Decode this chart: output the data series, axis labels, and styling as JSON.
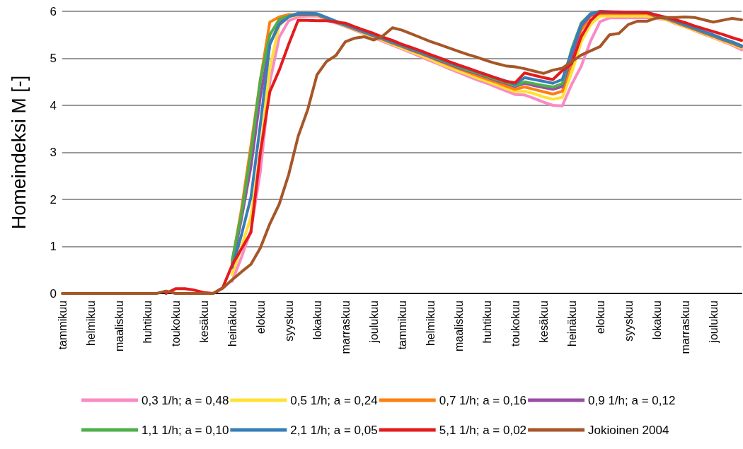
{
  "chart_data": {
    "type": "line",
    "ylabel": "Homeindeksi M [-]",
    "ylim": [
      0,
      6
    ],
    "yticks": [
      0,
      1,
      2,
      3,
      4,
      5,
      6
    ],
    "categories": [
      "tammikuu",
      null,
      null,
      "helmikuu",
      null,
      null,
      "maaliskuu",
      null,
      null,
      "huhtikuu",
      null,
      null,
      "toukokuu",
      null,
      null,
      "kesäkuu",
      null,
      null,
      "heinäkuu",
      null,
      null,
      "elokuu",
      null,
      null,
      "syyskuu",
      null,
      null,
      "lokakuu",
      null,
      null,
      "marraskuu",
      null,
      null,
      "joulukuu",
      null,
      null,
      "tammikuu",
      null,
      null,
      "helmikuu",
      null,
      null,
      "maaliskuu",
      null,
      null,
      "huhtikuu",
      null,
      null,
      "toukokuu",
      null,
      null,
      "kesäkuu",
      null,
      null,
      "heinäkuu",
      null,
      null,
      "elokuu",
      null,
      null,
      "syyskuu",
      null,
      null,
      "lokakuu",
      null,
      null,
      "marraskuu",
      null,
      null,
      "joulukuu",
      null,
      null,
      null
    ],
    "grid": "y",
    "legend": "bottom",
    "marker": "none",
    "line_style": "solid",
    "series": [
      {
        "name": "0,3 1/h; a = 0,48",
        "color": "#f98bc4",
        "values": [
          null,
          null,
          null,
          null,
          null,
          null,
          null,
          null,
          null,
          null,
          null,
          null,
          null,
          null,
          null,
          null,
          null,
          null,
          0.26,
          0.77,
          1.35,
          2.6,
          4.5,
          5.45,
          5.8,
          5.88,
          5.9,
          5.9,
          5.82,
          5.75,
          5.68,
          5.6,
          5.52,
          5.44,
          5.36,
          5.28,
          5.2,
          5.12,
          5.03,
          4.95,
          4.87,
          4.78,
          4.7,
          4.62,
          4.54,
          4.47,
          4.39,
          4.31,
          4.23,
          4.22,
          4.15,
          4.07,
          4.0,
          3.99,
          4.45,
          4.83,
          5.37,
          5.78,
          5.86,
          5.86,
          5.86,
          5.86,
          5.86,
          5.85,
          5.82,
          5.74,
          5.67,
          5.59,
          5.51,
          5.44,
          5.36,
          5.28,
          5.18
        ]
      },
      {
        "name": "0,5 1/h; a = 0,24",
        "color": "#ffe135",
        "values": [
          null,
          null,
          null,
          null,
          null,
          null,
          null,
          null,
          null,
          null,
          null,
          null,
          null,
          null,
          null,
          null,
          null,
          null,
          0.4,
          1.0,
          1.63,
          3.0,
          4.8,
          5.7,
          5.88,
          5.92,
          5.92,
          5.92,
          5.84,
          5.76,
          5.69,
          5.61,
          5.53,
          5.46,
          5.38,
          5.3,
          5.22,
          5.14,
          5.06,
          4.98,
          4.89,
          4.81,
          4.73,
          4.66,
          4.58,
          4.51,
          4.44,
          4.36,
          4.29,
          4.3,
          4.25,
          4.18,
          4.13,
          4.17,
          4.7,
          5.35,
          5.72,
          5.9,
          5.9,
          5.9,
          5.9,
          5.9,
          5.9,
          5.87,
          5.82,
          5.75,
          5.67,
          5.6,
          5.52,
          5.45,
          5.37,
          5.3,
          5.22
        ]
      },
      {
        "name": "0,7 1/h; a = 0,16",
        "color": "#ff7f0e",
        "values": [
          null,
          null,
          null,
          null,
          null,
          null,
          null,
          null,
          null,
          null,
          null,
          null,
          null,
          null,
          null,
          null,
          null,
          null,
          0.65,
          1.8,
          3.15,
          4.55,
          5.77,
          5.88,
          5.93,
          5.93,
          5.93,
          5.93,
          5.85,
          5.77,
          5.7,
          5.62,
          5.55,
          5.47,
          5.4,
          5.32,
          5.25,
          5.17,
          5.1,
          5.02,
          4.94,
          4.86,
          4.78,
          4.71,
          4.63,
          4.56,
          4.49,
          4.41,
          4.34,
          4.39,
          4.34,
          4.29,
          4.24,
          4.3,
          4.9,
          5.6,
          5.9,
          5.95,
          5.95,
          5.95,
          5.95,
          5.95,
          5.95,
          5.88,
          5.84,
          5.77,
          5.69,
          5.62,
          5.54,
          5.47,
          5.39,
          5.32,
          5.24
        ]
      },
      {
        "name": "0,9 1/h; a = 0,12",
        "color": "#984ea3",
        "values": [
          null,
          null,
          null,
          null,
          null,
          null,
          null,
          null,
          null,
          null,
          null,
          null,
          null,
          null,
          null,
          null,
          null,
          null,
          0.6,
          1.6,
          2.7,
          4.2,
          5.3,
          5.75,
          5.9,
          5.93,
          5.93,
          5.93,
          5.85,
          5.77,
          5.7,
          5.63,
          5.55,
          5.48,
          5.41,
          5.33,
          5.26,
          5.18,
          5.11,
          5.03,
          4.95,
          4.88,
          4.8,
          4.73,
          4.67,
          4.6,
          4.53,
          4.47,
          4.4,
          4.47,
          4.42,
          4.38,
          4.34,
          4.4,
          5.05,
          5.68,
          5.92,
          5.97,
          5.97,
          5.97,
          5.97,
          5.97,
          5.97,
          5.89,
          5.85,
          5.78,
          5.7,
          5.63,
          5.55,
          5.48,
          5.4,
          5.33,
          5.25
        ]
      },
      {
        "name": "1,1 1/h; a = 0,10",
        "color": "#4daf4a",
        "values": [
          null,
          null,
          null,
          null,
          null,
          null,
          null,
          null,
          null,
          null,
          null,
          null,
          null,
          null,
          null,
          null,
          null,
          null,
          0.7,
          1.7,
          3.0,
          4.55,
          5.5,
          5.83,
          5.9,
          5.95,
          5.95,
          5.94,
          5.86,
          5.78,
          5.71,
          5.64,
          5.56,
          5.49,
          5.42,
          5.34,
          5.27,
          5.2,
          5.12,
          5.05,
          4.97,
          4.9,
          4.82,
          4.75,
          4.69,
          4.62,
          4.55,
          4.49,
          4.42,
          4.5,
          4.46,
          4.42,
          4.39,
          4.46,
          5.2,
          5.75,
          5.95,
          5.98,
          5.98,
          5.98,
          5.98,
          5.98,
          5.98,
          5.9,
          5.86,
          5.79,
          5.71,
          5.64,
          5.56,
          5.49,
          5.41,
          5.34,
          5.26
        ]
      },
      {
        "name": "2,1 1/h; a = 0,05",
        "color": "#377eb8",
        "values": [
          null,
          null,
          null,
          null,
          null,
          null,
          null,
          null,
          null,
          null,
          null,
          null,
          null,
          null,
          null,
          null,
          null,
          null,
          0.55,
          1.25,
          2.05,
          3.6,
          5.3,
          5.72,
          5.88,
          5.96,
          5.96,
          5.95,
          5.87,
          5.79,
          5.72,
          5.65,
          5.57,
          5.5,
          5.43,
          5.35,
          5.28,
          5.21,
          5.13,
          5.06,
          4.99,
          4.91,
          4.84,
          4.78,
          4.71,
          4.65,
          4.58,
          4.52,
          4.45,
          4.59,
          4.55,
          4.51,
          4.47,
          4.55,
          5.15,
          5.72,
          5.95,
          6.0,
          5.99,
          5.99,
          5.98,
          5.98,
          5.98,
          5.92,
          5.87,
          5.8,
          5.72,
          5.65,
          5.57,
          5.5,
          5.42,
          5.35,
          5.27
        ]
      },
      {
        "name": "5,1 1/h; a = 0,02",
        "color": "#e41a1c",
        "values": [
          null,
          null,
          null,
          null,
          null,
          null,
          null,
          null,
          null,
          null,
          null,
          0,
          0.1,
          0.1,
          0.07,
          0.02,
          0,
          0.12,
          0.6,
          0.95,
          1.3,
          3.0,
          4.29,
          4.75,
          5.3,
          5.81,
          5.81,
          5.8,
          5.8,
          5.77,
          5.75,
          5.67,
          5.6,
          5.53,
          5.45,
          5.38,
          5.3,
          5.23,
          5.16,
          5.08,
          5.01,
          4.93,
          4.86,
          4.79,
          4.72,
          4.65,
          4.58,
          4.51,
          4.48,
          4.69,
          4.64,
          4.59,
          4.55,
          4.74,
          4.89,
          5.46,
          5.8,
          5.99,
          5.99,
          5.98,
          5.98,
          5.98,
          5.97,
          5.92,
          5.87,
          5.82,
          5.76,
          5.69,
          5.63,
          5.57,
          5.51,
          5.44,
          5.38
        ]
      },
      {
        "name": "Jokioinen 2004",
        "color": "#a65628",
        "values": [
          0,
          0,
          0,
          0,
          0,
          0,
          0,
          0,
          0,
          0,
          0,
          0.05,
          0,
          0,
          0,
          0,
          0,
          0.11,
          0.29,
          0.46,
          0.62,
          0.97,
          1.48,
          1.9,
          2.53,
          3.34,
          3.9,
          4.65,
          4.93,
          5.06,
          5.35,
          5.43,
          5.46,
          5.39,
          5.48,
          5.65,
          5.6,
          5.52,
          5.44,
          5.36,
          5.29,
          5.22,
          5.15,
          5.08,
          5.02,
          4.95,
          4.89,
          4.84,
          4.82,
          4.78,
          4.73,
          4.68,
          4.75,
          4.79,
          4.93,
          5.07,
          5.16,
          5.25,
          5.5,
          5.53,
          5.72,
          5.79,
          5.79,
          5.86,
          5.87,
          5.87,
          5.88,
          5.87,
          5.82,
          5.77,
          5.81,
          5.85,
          5.82
        ]
      }
    ]
  }
}
